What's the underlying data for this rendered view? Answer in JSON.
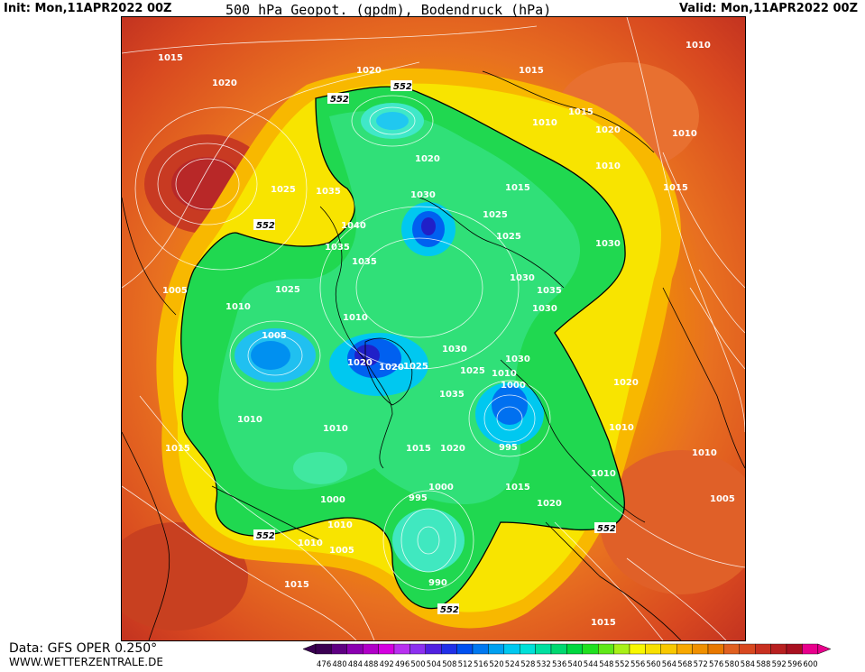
{
  "header": {
    "init": "Init: Mon,11APR2022 00Z",
    "title": "500 hPa Geopot. (gpdm), Bodendruck (hPa)",
    "valid": "Valid: Mon,11APR2022 00Z"
  },
  "footer": {
    "data_source": "Data: GFS OPER 0.250°",
    "website": "WWW.WETTERZENTRALE.DE"
  },
  "colorbar": {
    "values": [
      "476",
      "480",
      "484",
      "488",
      "492",
      "496",
      "500",
      "504",
      "508",
      "512",
      "516",
      "520",
      "524",
      "528",
      "532",
      "536",
      "540",
      "544",
      "548",
      "552",
      "556",
      "560",
      "564",
      "568",
      "572",
      "576",
      "580",
      "584",
      "588",
      "592",
      "596",
      "600"
    ],
    "colors": [
      "#3a0052",
      "#5e0082",
      "#8a00b0",
      "#b000c8",
      "#d400e0",
      "#b830f0",
      "#8c30f0",
      "#5020e0",
      "#2030e8",
      "#0050f0",
      "#0078f0",
      "#00a0f0",
      "#00c8f0",
      "#00e0d8",
      "#00e0a0",
      "#00d870",
      "#00d840",
      "#20e020",
      "#60e818",
      "#a8f018",
      "#f8f800",
      "#f8e000",
      "#f8c800",
      "#f8a800",
      "#f09000",
      "#e87800",
      "#e06020",
      "#d84820",
      "#c83020",
      "#b82020",
      "#a81020",
      "#e8008c"
    ]
  },
  "map_labels": {
    "contour_552": "552",
    "pressure": [
      "1015",
      "1020",
      "1020",
      "1015",
      "1010",
      "1010",
      "1020",
      "1015",
      "1010",
      "1010",
      "1015",
      "1025",
      "1035",
      "1040",
      "1035",
      "1035",
      "1025",
      "1030",
      "1030",
      "1025",
      "1020",
      "1015",
      "1030",
      "1030",
      "1035",
      "1030",
      "1005",
      "1010",
      "1025",
      "1010",
      "1005",
      "1020",
      "1020",
      "1025",
      "1030",
      "1035",
      "1025",
      "1000",
      "1010",
      "1010",
      "1010",
      "1010",
      "1015",
      "1015",
      "995",
      "1015",
      "1020",
      "1000",
      "995",
      "1020",
      "1000",
      "1010",
      "1015",
      "1005",
      "1010",
      "990",
      "1015",
      "1020",
      "1010",
      "1010",
      "1005"
    ]
  }
}
